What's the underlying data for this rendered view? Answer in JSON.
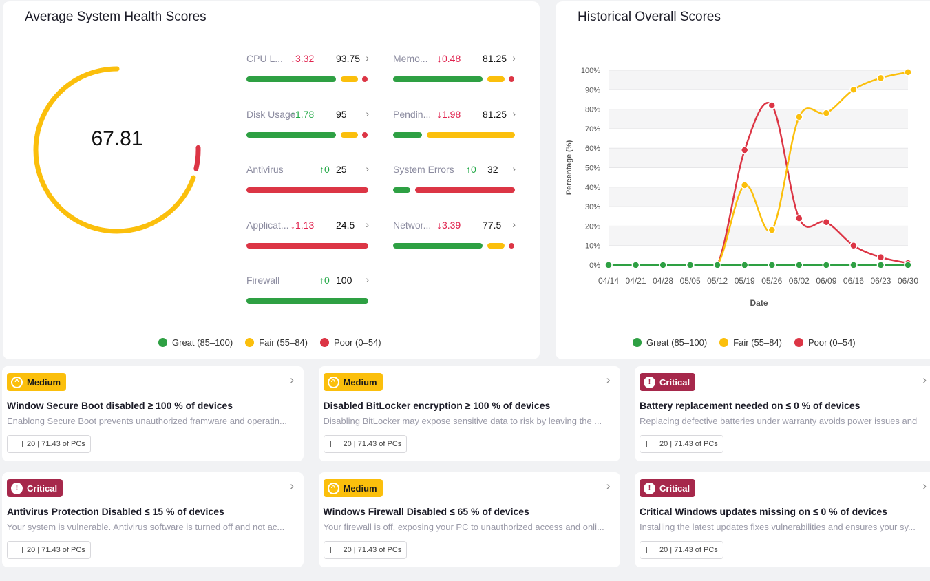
{
  "health": {
    "title": "Average System Health Scores",
    "overall_score": "67.81",
    "overall_composition": {
      "fair": 0.95,
      "poor": 0.05
    },
    "metrics": [
      {
        "name": "CPU L...",
        "delta": "3.32",
        "direction": "down",
        "value": "93.75",
        "bars": [
          "great",
          "fair",
          "poor"
        ]
      },
      {
        "name": "Memo...",
        "delta": "0.48",
        "direction": "down",
        "value": "81.25",
        "bars": [
          "great",
          "fair",
          "poor"
        ]
      },
      {
        "name": "Disk Usage",
        "delta": "1.78",
        "direction": "up",
        "value": "95",
        "bars": [
          "great",
          "fair",
          "poor"
        ]
      },
      {
        "name": "Pendin...",
        "delta": "1.98",
        "direction": "down",
        "value": "81.25",
        "bars": [
          "great",
          "fair"
        ]
      },
      {
        "name": "Antivirus",
        "delta": "0",
        "direction": "up",
        "value": "25",
        "bars": [
          "poor"
        ]
      },
      {
        "name": "System Errors",
        "delta": "0",
        "direction": "up",
        "value": "32",
        "bars": [
          "great",
          "poor"
        ]
      },
      {
        "name": "Applicat...",
        "delta": "1.13",
        "direction": "down",
        "value": "24.5",
        "bars": [
          "poor"
        ]
      },
      {
        "name": "Networ...",
        "delta": "3.39",
        "direction": "down",
        "value": "77.5",
        "bars": [
          "great",
          "fair",
          "poor"
        ]
      },
      {
        "name": "Firewall",
        "delta": "0",
        "direction": "up",
        "value": "100",
        "bars": [
          "great"
        ]
      }
    ],
    "legend": [
      "Great (85–100)",
      "Fair (55–84)",
      "Poor (0–54)"
    ]
  },
  "history": {
    "title": "Historical Overall Scores",
    "legend": [
      "Great (85–100)",
      "Fair (55–84)",
      "Poor (0–54)"
    ]
  },
  "chart_data": {
    "type": "line",
    "title": "Historical Overall Scores",
    "xlabel": "Date",
    "ylabel": "Percentage (%)",
    "ylim": [
      0,
      100
    ],
    "grid": true,
    "legend_placement": "bottom",
    "categories": [
      "04/14",
      "04/21",
      "04/28",
      "05/05",
      "05/12",
      "05/19",
      "05/26",
      "06/02",
      "06/09",
      "06/16",
      "06/23",
      "06/30"
    ],
    "y_ticks": [
      "0%",
      "10%",
      "20%",
      "30%",
      "40%",
      "50%",
      "60%",
      "70%",
      "80%",
      "90%",
      "100%"
    ],
    "series": [
      {
        "name": "Great (85–100)",
        "color": "#2ea043",
        "values": [
          0,
          0,
          0,
          0,
          0,
          0,
          0,
          0,
          0,
          0,
          0,
          0
        ]
      },
      {
        "name": "Fair (55–84)",
        "color": "#fbbf0c",
        "values": [
          0,
          0,
          0,
          0,
          0,
          41,
          18,
          76,
          78,
          90,
          96,
          99
        ]
      },
      {
        "name": "Poor (0–54)",
        "color": "#dc3545",
        "values": [
          0,
          0,
          0,
          0,
          0,
          59,
          82,
          24,
          22,
          10,
          4,
          1
        ]
      }
    ]
  },
  "colors": {
    "great": "#2ea043",
    "fair": "#fbbf0c",
    "poor": "#dc3545",
    "critical": "#a6284b"
  },
  "cards": [
    {
      "severity": "Medium",
      "title": "Window Secure Boot disabled ≥ 100 % of devices",
      "desc": "Enablong Secure Boot prevents unauthorized framware and operatin...",
      "pcs": "20 | 71.43 of PCs"
    },
    {
      "severity": "Medium",
      "title": "Disabled BitLocker encryption ≥ 100 % of devices",
      "desc": "Disabling BitLocker may expose sensitive data to risk by leaving the ...",
      "pcs": "20 | 71.43 of PCs"
    },
    {
      "severity": "Critical",
      "title": "Battery replacement needed on ≤ 0 % of devices",
      "desc": "Replacing defective batteries under warranty avoids power issues and",
      "pcs": "20 | 71.43 of PCs"
    },
    {
      "severity": "Critical",
      "title": "Antivirus Protection Disabled ≤ 15 % of devices",
      "desc": "Your system is vulnerable. Antivirus software is turned off and not ac...",
      "pcs": "20 | 71.43 of PCs"
    },
    {
      "severity": "Medium",
      "title": "Windows Firewall Disabled ≤ 65 % of devices",
      "desc": "Your firewall is off, exposing your PC to unauthorized access and onli...",
      "pcs": "20 | 71.43 of PCs"
    },
    {
      "severity": "Critical",
      "title": "Critical Windows updates missing on ≤ 0 % of devices",
      "desc": "Installing the latest updates fixes vulnerabilities and ensures your sy...",
      "pcs": "20 | 71.43 of PCs"
    }
  ]
}
